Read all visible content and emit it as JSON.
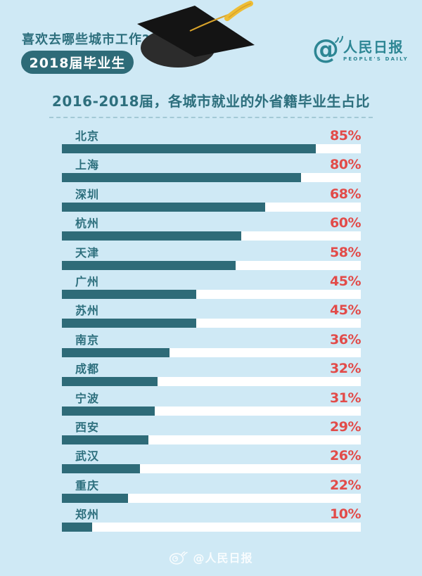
{
  "header": {
    "question": "喜欢去哪些城市工作?",
    "badge": "2018届毕业生",
    "logo": {
      "at": "@",
      "name": "人民日报",
      "subtitle": "PEOPLE'S DAILY"
    }
  },
  "chart": {
    "title": "2016-2018届，各城市就业的外省籍毕业生占比"
  },
  "chart_data": {
    "type": "bar",
    "orientation": "horizontal",
    "title": "2016-2018届，各城市就业的外省籍毕业生占比",
    "unit": "%",
    "xlim": [
      0,
      100
    ],
    "grid": false,
    "legend": false,
    "categories": [
      "北京",
      "上海",
      "深圳",
      "杭州",
      "天津",
      "广州",
      "苏州",
      "南京",
      "成都",
      "宁波",
      "西安",
      "武汉",
      "重庆",
      "郑州"
    ],
    "values": [
      85,
      80,
      68,
      60,
      58,
      45,
      45,
      36,
      32,
      31,
      29,
      26,
      22,
      10
    ],
    "bar_color": "#2e6b78",
    "track_color": "#ffffff",
    "value_label_color": "#e24b49"
  },
  "footer": {
    "watermark": "@人民日报"
  },
  "colors": {
    "bg": "#cfe9f5",
    "teal": "#2e6b78",
    "teal-text": "#2d6f7d",
    "logo-teal": "#2d8694",
    "red": "#e24b49",
    "track": "#ffffff",
    "divider": "#a3c9d6",
    "tassel-yellow": "#eebd35",
    "watermark": "rgba(255,255,255,0.85)"
  }
}
